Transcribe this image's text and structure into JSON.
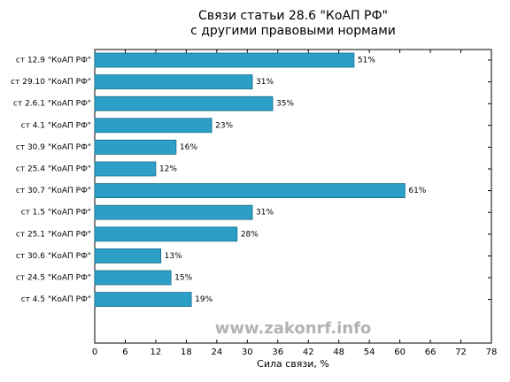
{
  "chart_data": {
    "type": "barh",
    "title": "Связи статьи 28.6 \"КоАП РФ\"",
    "subtitle": "с другими правовыми нормами",
    "xlabel": "Сила связи, %",
    "watermark": "www.zakonrf.info",
    "categories": [
      "ст 12.9 \"КоАП РФ\"",
      "ст 29.10 \"КоАП РФ\"",
      "ст 2.6.1 \"КоАП РФ\"",
      "ст 4.1 \"КоАП РФ\"",
      "ст 30.9 \"КоАП РФ\"",
      "ст 25.4 \"КоАП РФ\"",
      "ст 30.7 \"КоАП РФ\"",
      "ст 1.5 \"КоАП РФ\"",
      "ст 25.1 \"КоАП РФ\"",
      "ст 30.6 \"КоАП РФ\"",
      "ст 24.5 \"КоАП РФ\"",
      "ст 4.5 \"КоАП РФ\""
    ],
    "values": [
      51,
      31,
      35,
      23,
      16,
      12,
      61,
      31,
      28,
      13,
      15,
      19
    ],
    "value_labels": [
      "51%",
      "31%",
      "35%",
      "23%",
      "16%",
      "12%",
      "61%",
      "31%",
      "28%",
      "13%",
      "15%",
      "19%"
    ],
    "color": "#2b9fc6",
    "xlim": [
      0,
      78
    ],
    "xticks": [
      0,
      6,
      12,
      18,
      24,
      30,
      36,
      42,
      48,
      54,
      60,
      66,
      72,
      78
    ]
  }
}
